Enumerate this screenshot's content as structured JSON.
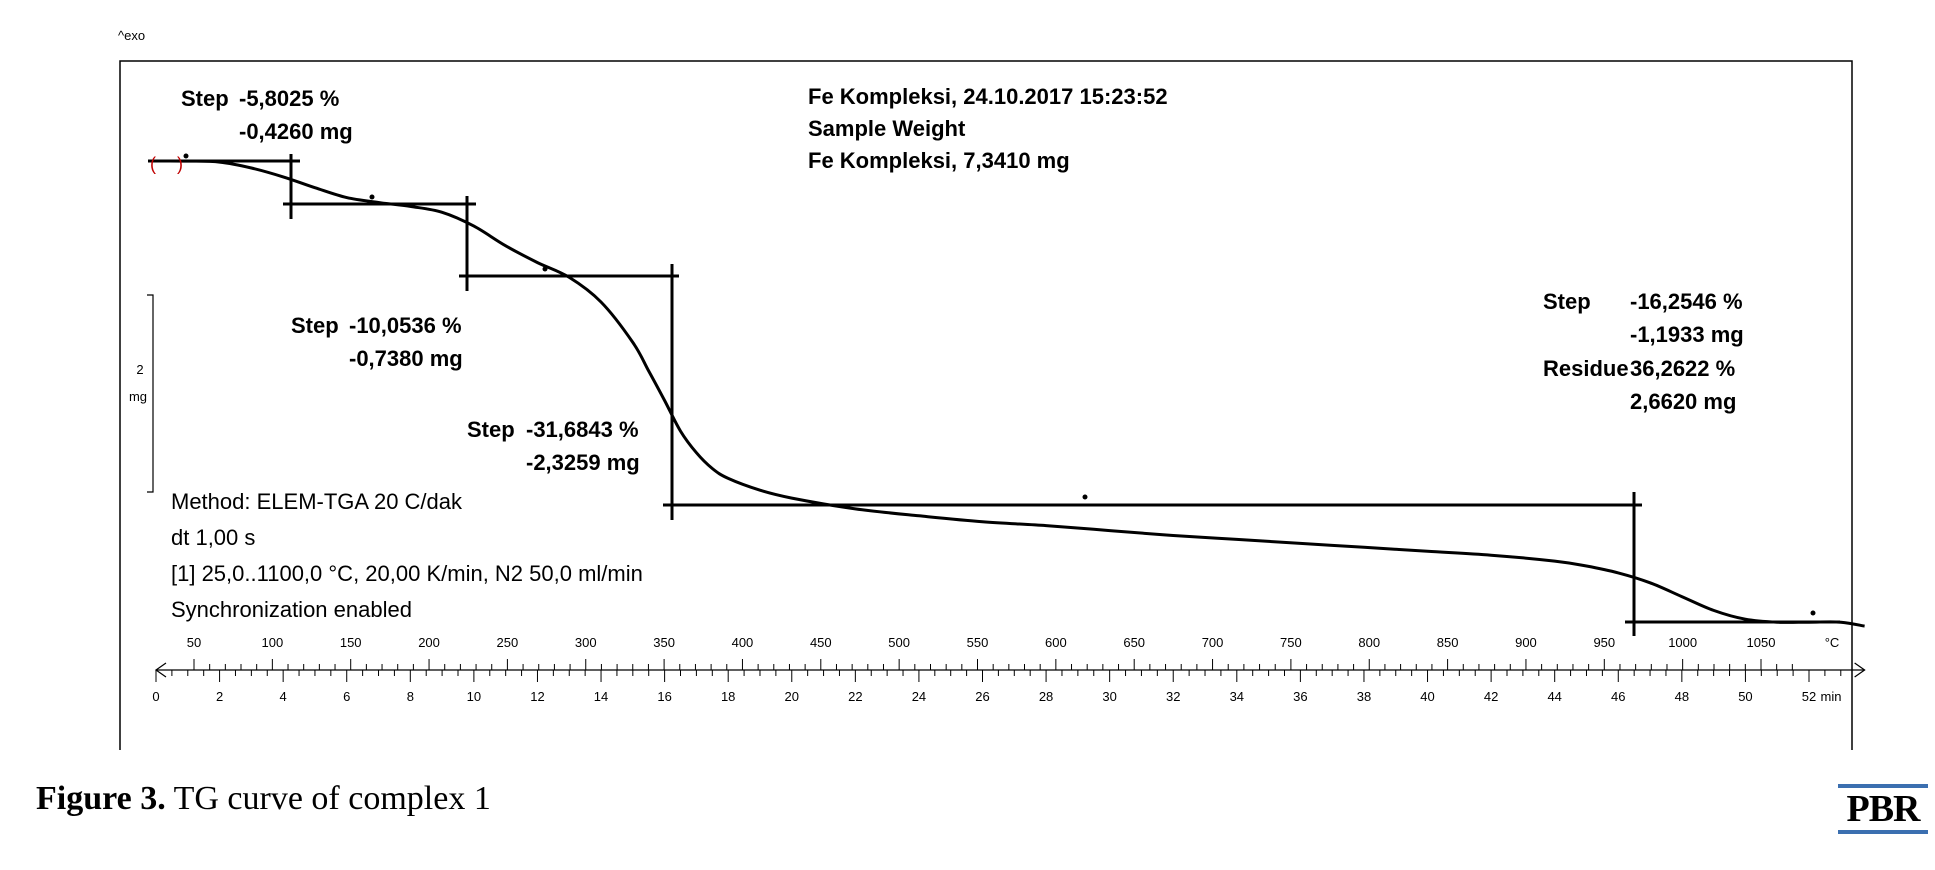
{
  "chart_data": {
    "type": "line",
    "title": "Fe Kompleksi, 24.10.2017 15:23:52",
    "header_lines": [
      "Fe Kompleksi, 24.10.2017 15:23:52",
      "Sample Weight",
      "Fe Kompleksi, 7,3410 mg"
    ],
    "exo_label": "^exo",
    "scale_bar": {
      "value": "2",
      "unit": "mg"
    },
    "x_temperature": {
      "ticks": [
        50,
        100,
        150,
        200,
        250,
        300,
        350,
        400,
        450,
        500,
        550,
        600,
        650,
        700,
        750,
        800,
        850,
        900,
        950,
        1000,
        1050
      ],
      "unit": "°C",
      "range": [
        25,
        1100
      ]
    },
    "x_time": {
      "ticks": [
        0,
        2,
        4,
        6,
        8,
        10,
        12,
        14,
        16,
        18,
        20,
        22,
        24,
        26,
        28,
        30,
        32,
        34,
        36,
        38,
        40,
        42,
        44,
        46,
        48,
        50,
        52
      ],
      "unit": "min",
      "range": [
        0,
        53.75
      ]
    },
    "series": [
      {
        "x_min": [
          0,
          1,
          2,
          3,
          4,
          5,
          6,
          7,
          8,
          9,
          10,
          11,
          12,
          13,
          14,
          15,
          15.5,
          16,
          16.5,
          17,
          17.5,
          18,
          19,
          20,
          22,
          24,
          26,
          28,
          30,
          32,
          34,
          36,
          38,
          40,
          42,
          44,
          45,
          46,
          47,
          48,
          49,
          50,
          51,
          52,
          53,
          53.75
        ],
        "y_mass_mg": [
          7.341,
          7.34,
          7.33,
          7.27,
          7.18,
          7.07,
          6.97,
          6.92,
          6.88,
          6.82,
          6.68,
          6.48,
          6.31,
          6.16,
          5.91,
          5.5,
          5.21,
          4.91,
          4.6,
          4.38,
          4.22,
          4.12,
          4.0,
          3.92,
          3.81,
          3.74,
          3.68,
          3.64,
          3.59,
          3.54,
          3.5,
          3.46,
          3.42,
          3.38,
          3.34,
          3.28,
          3.23,
          3.16,
          3.06,
          2.92,
          2.78,
          2.69,
          2.66,
          2.66,
          2.66,
          2.62
        ]
      }
    ],
    "steps": [
      {
        "label": "Step",
        "percent": "-5,8025 %",
        "mass": "-0,4260 mg"
      },
      {
        "label": "Step",
        "percent": "-10,0536 %",
        "mass": "-0,7380 mg"
      },
      {
        "label": "Step",
        "percent": "-31,6843 %",
        "mass": "-2,3259 mg"
      },
      {
        "label": "Step",
        "percent": "-16,2546 %",
        "mass": "-1,1933 mg",
        "residue_label": "Residue",
        "residue_percent": "36,2622 %",
        "residue_mass": "2,6620 mg"
      }
    ],
    "method_lines": [
      "Method: ELEM-TGA 20 C/dak",
      "dt 1,00 s",
      "[1] 25,0..1100,0 °C, 20,00 K/min,  N2 50,0 ml/min",
      "Synchronization enabled"
    ]
  },
  "caption": {
    "label": "Figure 3.",
    "text": "TG curve of complex 1"
  },
  "logo": {
    "text": "PBR",
    "color": "#3b6fb0"
  }
}
